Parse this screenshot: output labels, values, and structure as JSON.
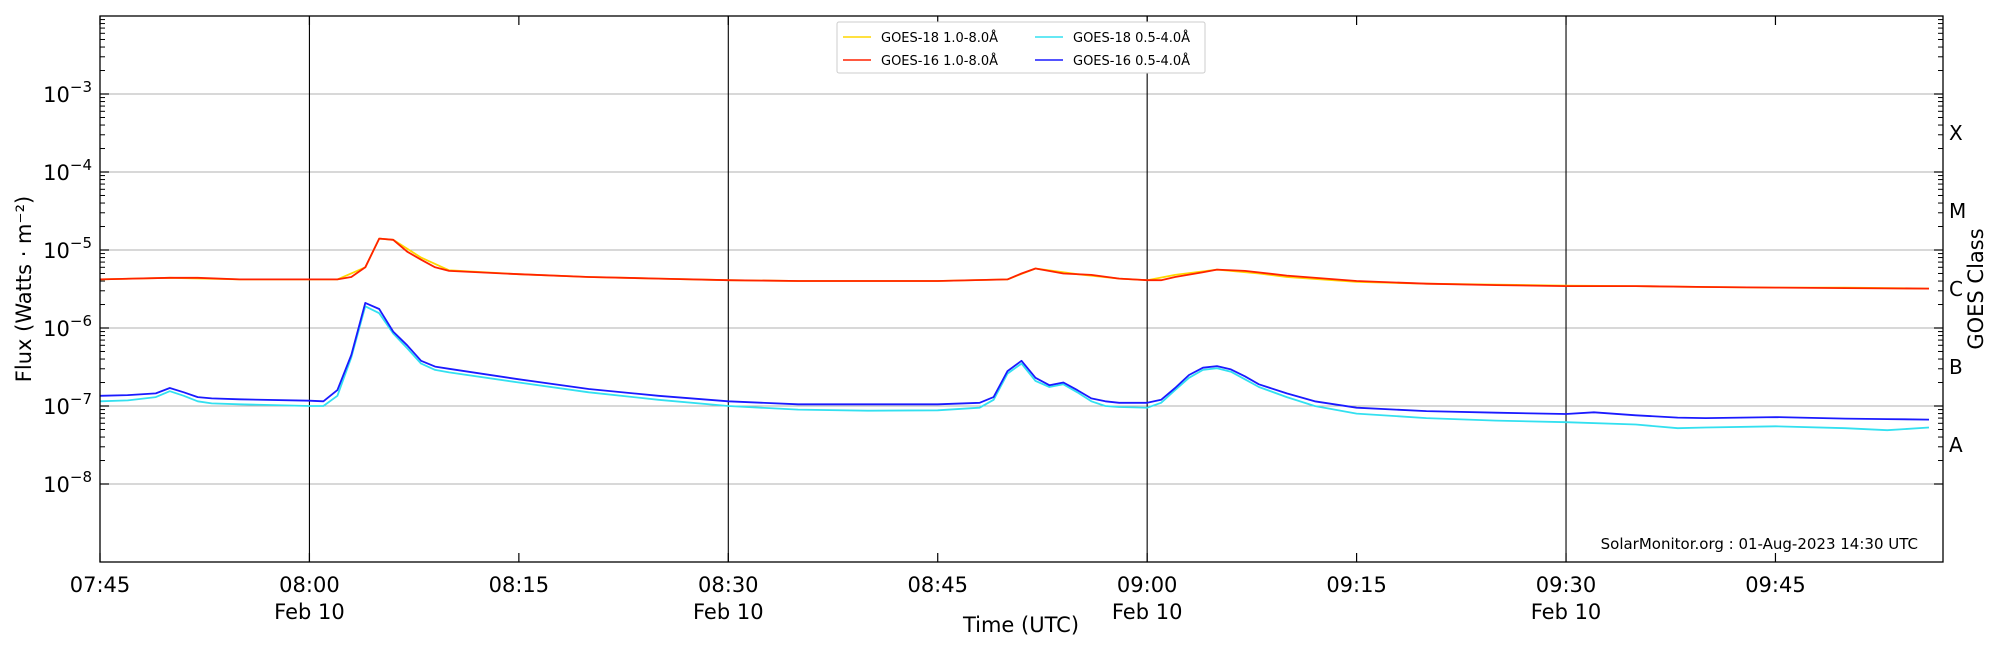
{
  "chart_data": {
    "type": "line",
    "title": "",
    "xlabel": "Time (UTC)",
    "ylabel": "Flux (Watts · m⁻²)",
    "y2label": "GOES Class",
    "yscale": "log",
    "ylim": [
      1e-09,
      0.01
    ],
    "xlim": [
      "07:45",
      "09:57"
    ],
    "grid": "horizontal at decades",
    "legend_position": "top-center",
    "credit": "SolarMonitor.org : 01-Aug-2023 14:30 UTC",
    "x_ticks": [
      {
        "time": "07:45",
        "label": "07:45",
        "sub": ""
      },
      {
        "time": "08:00",
        "label": "08:00",
        "sub": "Feb 10"
      },
      {
        "time": "08:15",
        "label": "08:15",
        "sub": ""
      },
      {
        "time": "08:30",
        "label": "08:30",
        "sub": "Feb 10"
      },
      {
        "time": "08:45",
        "label": "08:45",
        "sub": ""
      },
      {
        "time": "09:00",
        "label": "09:00",
        "sub": "Feb 10"
      },
      {
        "time": "09:15",
        "label": "09:15",
        "sub": ""
      },
      {
        "time": "09:30",
        "label": "09:30",
        "sub": "Feb 10"
      },
      {
        "time": "09:45",
        "label": "09:45",
        "sub": ""
      }
    ],
    "day_lines": [
      "08:00",
      "08:30",
      "09:00",
      "09:30"
    ],
    "y_ticks": [
      {
        "value": 1e-08,
        "base": "10",
        "exp": "−8"
      },
      {
        "value": 1e-07,
        "base": "10",
        "exp": "−7"
      },
      {
        "value": 1e-06,
        "base": "10",
        "exp": "−6"
      },
      {
        "value": 1e-05,
        "base": "10",
        "exp": "−5"
      },
      {
        "value": 0.0001,
        "base": "10",
        "exp": "−4"
      },
      {
        "value": 0.001,
        "base": "10",
        "exp": "−3"
      }
    ],
    "goes_classes": [
      {
        "label": "A",
        "value": 3.16e-08
      },
      {
        "label": "B",
        "value": 3.16e-07
      },
      {
        "label": "C",
        "value": 3.16e-06
      },
      {
        "label": "M",
        "value": 3.16e-05
      },
      {
        "label": "X",
        "value": 0.000316
      }
    ],
    "series": [
      {
        "name": "GOES-18 1.0-8.0Å",
        "color": "#ffd700",
        "x": [
          "07:45",
          "07:50",
          "07:55",
          "08:00",
          "08:02",
          "08:04",
          "08:05",
          "08:06",
          "08:08",
          "08:10",
          "08:15",
          "08:20",
          "08:25",
          "08:30",
          "08:35",
          "08:40",
          "08:45",
          "08:50",
          "08:52",
          "08:55",
          "08:58",
          "09:00",
          "09:02",
          "09:05",
          "09:08",
          "09:10",
          "09:15",
          "09:20",
          "09:25",
          "09:30",
          "09:35",
          "09:40",
          "09:45",
          "09:50",
          "09:56"
        ],
        "y": [
          4.2e-06,
          4.4e-06,
          4.2e-06,
          4.2e-06,
          4.2e-06,
          6e-06,
          1.4e-05,
          1.35e-05,
          8e-06,
          5.5e-06,
          4.9e-06,
          4.5e-06,
          4.3e-06,
          4.1e-06,
          4e-06,
          4e-06,
          4e-06,
          4.2e-06,
          5.8e-06,
          4.9e-06,
          4.3e-06,
          4.1e-06,
          4.8e-06,
          5.6e-06,
          5e-06,
          4.5e-06,
          3.9e-06,
          3.7e-06,
          3.6e-06,
          3.5e-06,
          3.45e-06,
          3.35e-06,
          3.3e-06,
          3.3e-06,
          3.2e-06
        ]
      },
      {
        "name": "GOES-16 1.0-8.0Å",
        "color": "#ff2200",
        "x": [
          "07:45",
          "07:50",
          "07:52",
          "07:55",
          "08:00",
          "08:02",
          "08:03",
          "08:04",
          "08:05",
          "08:06",
          "08:07",
          "08:08",
          "08:09",
          "08:10",
          "08:15",
          "08:20",
          "08:25",
          "08:30",
          "08:35",
          "08:40",
          "08:45",
          "08:50",
          "08:51",
          "08:52",
          "08:54",
          "08:56",
          "08:58",
          "09:00",
          "09:01",
          "09:02",
          "09:04",
          "09:05",
          "09:07",
          "09:10",
          "09:15",
          "09:20",
          "09:25",
          "09:30",
          "09:35",
          "09:40",
          "09:45",
          "09:50",
          "09:56"
        ],
        "y": [
          4.2e-06,
          4.4e-06,
          4.4e-06,
          4.2e-06,
          4.2e-06,
          4.2e-06,
          4.5e-06,
          6e-06,
          1.4e-05,
          1.35e-05,
          9.5e-06,
          7.5e-06,
          6e-06,
          5.4e-06,
          4.9e-06,
          4.5e-06,
          4.3e-06,
          4.1e-06,
          4e-06,
          4e-06,
          4e-06,
          4.2e-06,
          5e-06,
          5.8e-06,
          5e-06,
          4.8e-06,
          4.3e-06,
          4.1e-06,
          4.1e-06,
          4.5e-06,
          5.2e-06,
          5.6e-06,
          5.4e-06,
          4.7e-06,
          4e-06,
          3.7e-06,
          3.55e-06,
          3.45e-06,
          3.45e-06,
          3.35e-06,
          3.3e-06,
          3.25e-06,
          3.2e-06
        ]
      },
      {
        "name": "GOES-18 0.5-4.0Å",
        "color": "#33e0f0",
        "x": [
          "07:45",
          "07:47",
          "07:49",
          "07:50",
          "07:51",
          "07:52",
          "07:53",
          "07:55",
          "08:00",
          "08:01",
          "08:02",
          "08:03",
          "08:04",
          "08:05",
          "08:06",
          "08:07",
          "08:08",
          "08:09",
          "08:10",
          "08:15",
          "08:20",
          "08:25",
          "08:30",
          "08:35",
          "08:40",
          "08:45",
          "08:48",
          "08:49",
          "08:50",
          "08:51",
          "08:52",
          "08:53",
          "08:54",
          "08:55",
          "08:56",
          "08:57",
          "08:58",
          "09:00",
          "09:01",
          "09:02",
          "09:03",
          "09:04",
          "09:05",
          "09:06",
          "09:07",
          "09:08",
          "09:10",
          "09:12",
          "09:15",
          "09:20",
          "09:25",
          "09:30",
          "09:35",
          "09:38",
          "09:40",
          "09:45",
          "09:50",
          "09:53",
          "09:56"
        ],
        "y": [
          1.15e-07,
          1.18e-07,
          1.3e-07,
          1.55e-07,
          1.35e-07,
          1.15e-07,
          1.08e-07,
          1.05e-07,
          1e-07,
          1e-07,
          1.35e-07,
          4.2e-07,
          1.9e-06,
          1.55e-06,
          8.5e-07,
          5.5e-07,
          3.5e-07,
          2.9e-07,
          2.7e-07,
          2e-07,
          1.5e-07,
          1.2e-07,
          1e-07,
          9e-08,
          8.7e-08,
          8.8e-08,
          9.5e-08,
          1.2e-07,
          2.6e-07,
          3.5e-07,
          2.1e-07,
          1.75e-07,
          1.9e-07,
          1.5e-07,
          1.15e-07,
          1e-07,
          9.7e-08,
          9.5e-08,
          1.1e-07,
          1.6e-07,
          2.3e-07,
          2.9e-07,
          3.05e-07,
          2.75e-07,
          2.2e-07,
          1.75e-07,
          1.3e-07,
          1e-07,
          8e-08,
          7e-08,
          6.5e-08,
          6.2e-08,
          5.8e-08,
          5.2e-08,
          5.3e-08,
          5.5e-08,
          5.2e-08,
          4.9e-08,
          5.3e-08
        ]
      },
      {
        "name": "GOES-16 0.5-4.0Å",
        "color": "#1a1aff",
        "x": [
          "07:45",
          "07:47",
          "07:49",
          "07:50",
          "07:51",
          "07:52",
          "07:53",
          "07:55",
          "08:00",
          "08:01",
          "08:02",
          "08:03",
          "08:04",
          "08:05",
          "08:06",
          "08:07",
          "08:08",
          "08:09",
          "08:10",
          "08:15",
          "08:20",
          "08:25",
          "08:30",
          "08:35",
          "08:40",
          "08:45",
          "08:48",
          "08:49",
          "08:50",
          "08:51",
          "08:52",
          "08:53",
          "08:54",
          "08:55",
          "08:56",
          "08:57",
          "08:58",
          "09:00",
          "09:01",
          "09:02",
          "09:03",
          "09:04",
          "09:05",
          "09:06",
          "09:07",
          "09:08",
          "09:10",
          "09:12",
          "09:15",
          "09:20",
          "09:25",
          "09:30",
          "09:32",
          "09:35",
          "09:38",
          "09:40",
          "09:45",
          "09:50",
          "09:53",
          "09:56"
        ],
        "y": [
          1.35e-07,
          1.38e-07,
          1.45e-07,
          1.7e-07,
          1.5e-07,
          1.3e-07,
          1.25e-07,
          1.22e-07,
          1.17e-07,
          1.15e-07,
          1.6e-07,
          4.5e-07,
          2.1e-06,
          1.75e-06,
          9e-07,
          6e-07,
          3.8e-07,
          3.2e-07,
          3e-07,
          2.2e-07,
          1.65e-07,
          1.35e-07,
          1.15e-07,
          1.05e-07,
          1.05e-07,
          1.05e-07,
          1.1e-07,
          1.3e-07,
          2.8e-07,
          3.8e-07,
          2.3e-07,
          1.85e-07,
          2e-07,
          1.6e-07,
          1.25e-07,
          1.15e-07,
          1.1e-07,
          1.1e-07,
          1.2e-07,
          1.7e-07,
          2.5e-07,
          3.1e-07,
          3.25e-07,
          2.95e-07,
          2.4e-07,
          1.9e-07,
          1.45e-07,
          1.15e-07,
          9.5e-08,
          8.6e-08,
          8.2e-08,
          7.9e-08,
          8.3e-08,
          7.6e-08,
          7.1e-08,
          7e-08,
          7.2e-08,
          6.9e-08,
          6.8e-08,
          6.7e-08
        ]
      }
    ]
  }
}
